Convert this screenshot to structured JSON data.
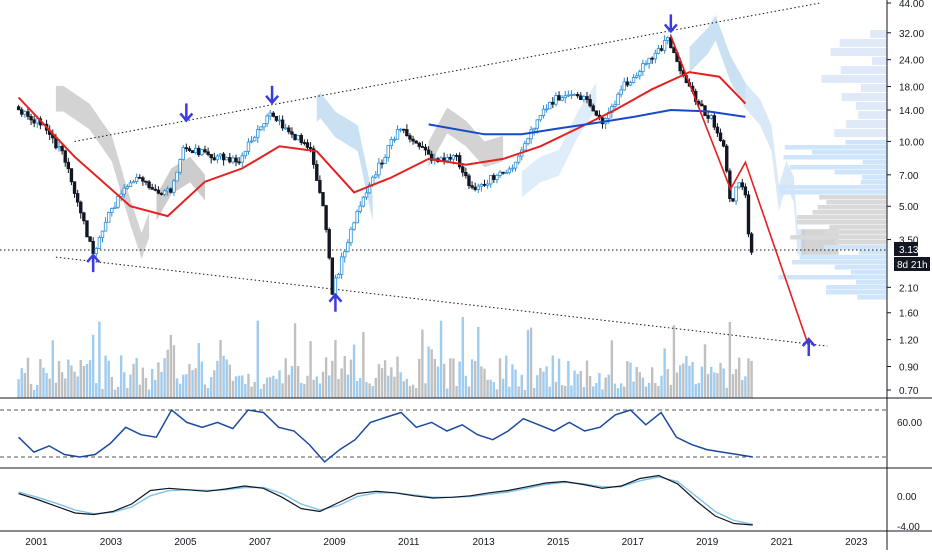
{
  "chart_data": {
    "type": "candlestick",
    "time_axis": {
      "labels": [
        "2001",
        "2003",
        "2005",
        "2007",
        "2009",
        "2011",
        "2013",
        "2015",
        "2017",
        "2019",
        "2021",
        "2023"
      ]
    },
    "price_axis": {
      "scale": "log",
      "ticks": [
        "44.00",
        "32.00",
        "24.00",
        "18.00",
        "14.00",
        "10.00",
        "7.00",
        "5.00",
        "3.50",
        "2.10",
        "1.60",
        "1.20",
        "0.90",
        "0.70"
      ],
      "last_price": "3.13",
      "countdown": "8d 21h"
    },
    "ohlc_anchors": [
      {
        "t": 2000.5,
        "v": 14.5
      },
      {
        "t": 2001.2,
        "v": 12.0
      },
      {
        "t": 2001.8,
        "v": 8.5
      },
      {
        "t": 2002.3,
        "v": 4.3
      },
      {
        "t": 2002.6,
        "v": 3.0
      },
      {
        "t": 2002.9,
        "v": 4.2
      },
      {
        "t": 2003.4,
        "v": 6.0
      },
      {
        "t": 2003.9,
        "v": 6.8
      },
      {
        "t": 2004.3,
        "v": 5.6
      },
      {
        "t": 2004.7,
        "v": 6.0
      },
      {
        "t": 2005.0,
        "v": 9.5
      },
      {
        "t": 2005.3,
        "v": 9.0
      },
      {
        "t": 2005.9,
        "v": 8.5
      },
      {
        "t": 2006.5,
        "v": 8.0
      },
      {
        "t": 2007.0,
        "v": 11.5
      },
      {
        "t": 2007.4,
        "v": 13.5
      },
      {
        "t": 2007.8,
        "v": 11.0
      },
      {
        "t": 2008.4,
        "v": 9.5
      },
      {
        "t": 2008.8,
        "v": 4.5
      },
      {
        "t": 2009.0,
        "v": 2.0
      },
      {
        "t": 2009.3,
        "v": 3.0
      },
      {
        "t": 2009.8,
        "v": 5.5
      },
      {
        "t": 2010.3,
        "v": 8.0
      },
      {
        "t": 2010.8,
        "v": 11.5
      },
      {
        "t": 2011.3,
        "v": 10.0
      },
      {
        "t": 2011.8,
        "v": 8.0
      },
      {
        "t": 2012.3,
        "v": 8.5
      },
      {
        "t": 2012.8,
        "v": 5.8
      },
      {
        "t": 2013.3,
        "v": 6.8
      },
      {
        "t": 2013.8,
        "v": 7.3
      },
      {
        "t": 2014.3,
        "v": 11.0
      },
      {
        "t": 2014.8,
        "v": 15.0
      },
      {
        "t": 2015.3,
        "v": 17.0
      },
      {
        "t": 2015.8,
        "v": 15.5
      },
      {
        "t": 2016.3,
        "v": 12.0
      },
      {
        "t": 2016.8,
        "v": 18.0
      },
      {
        "t": 2017.3,
        "v": 22.0
      },
      {
        "t": 2017.8,
        "v": 27.0
      },
      {
        "t": 2018.0,
        "v": 31.0
      },
      {
        "t": 2018.4,
        "v": 20.0
      },
      {
        "t": 2018.8,
        "v": 15.0
      },
      {
        "t": 2019.2,
        "v": 12.5
      },
      {
        "t": 2019.5,
        "v": 9.5
      },
      {
        "t": 2019.7,
        "v": 5.0
      },
      {
        "t": 2019.9,
        "v": 6.5
      },
      {
        "t": 2020.1,
        "v": 5.5
      },
      {
        "t": 2020.2,
        "v": 3.13
      }
    ],
    "moving_averages": [
      {
        "name": "",
        "color": "#e52020",
        "points": [
          {
            "t": 2000.5,
            "v": 16.0
          },
          {
            "t": 2002.0,
            "v": 8.5
          },
          {
            "t": 2003.5,
            "v": 5.0
          },
          {
            "t": 2004.5,
            "v": 4.5
          },
          {
            "t": 2005.5,
            "v": 6.5
          },
          {
            "t": 2006.5,
            "v": 7.5
          },
          {
            "t": 2007.5,
            "v": 9.5
          },
          {
            "t": 2008.5,
            "v": 9.0
          },
          {
            "t": 2009.5,
            "v": 5.8
          },
          {
            "t": 2010.5,
            "v": 6.8
          },
          {
            "t": 2011.5,
            "v": 8.3
          },
          {
            "t": 2012.5,
            "v": 7.8
          },
          {
            "t": 2013.5,
            "v": 8.3
          },
          {
            "t": 2014.5,
            "v": 9.5
          },
          {
            "t": 2015.5,
            "v": 11.5
          },
          {
            "t": 2016.5,
            "v": 14.0
          },
          {
            "t": 2017.5,
            "v": 17.5
          },
          {
            "t": 2018.5,
            "v": 21.0
          },
          {
            "t": 2019.3,
            "v": 20.0
          },
          {
            "t": 2020.0,
            "v": 15.0
          }
        ]
      },
      {
        "name": "",
        "color": "#1848cc",
        "points": [
          {
            "t": 2011.5,
            "v": 12.0
          },
          {
            "t": 2013.0,
            "v": 10.8
          },
          {
            "t": 2014.0,
            "v": 10.8
          },
          {
            "t": 2015.0,
            "v": 11.5
          },
          {
            "t": 2016.0,
            "v": 12.2
          },
          {
            "t": 2017.0,
            "v": 13.0
          },
          {
            "t": 2018.0,
            "v": 14.0
          },
          {
            "t": 2019.0,
            "v": 13.8
          },
          {
            "t": 2020.0,
            "v": 13.0
          }
        ]
      }
    ],
    "trendlines": [
      {
        "style": "dotted",
        "from": {
          "t": 2002.0,
          "v": 10.0
        },
        "to": {
          "t": 2022.0,
          "v": 44.0
        }
      },
      {
        "style": "dotted",
        "from": {
          "t": 2001.5,
          "v": 2.9
        },
        "to": {
          "t": 2022.2,
          "v": 1.12
        }
      },
      {
        "style": "dotted",
        "from": {
          "t": 2000.0,
          "v": 3.13
        },
        "to": {
          "t": 2023.8,
          "v": 3.13
        }
      }
    ],
    "projection": {
      "color": "#e52020",
      "points": [
        {
          "t": 2018.0,
          "v": 31.0
        },
        {
          "t": 2019.6,
          "v": 6.0
        },
        {
          "t": 2020.0,
          "v": 8.0
        },
        {
          "t": 2021.7,
          "v": 1.12
        }
      ]
    },
    "arrows": [
      {
        "dir": "down",
        "t": 2018.0,
        "v": 35.0
      },
      {
        "dir": "down",
        "t": 2005.0,
        "v": 13.5
      },
      {
        "dir": "down",
        "t": 2007.3,
        "v": 16.3
      },
      {
        "dir": "up",
        "t": 2002.5,
        "v": 2.75
      },
      {
        "dir": "up",
        "t": 2009.0,
        "v": 1.8
      },
      {
        "dir": "up",
        "t": 2021.7,
        "v": 1.12
      }
    ],
    "rsi": {
      "label": "60.00",
      "values": [
        50,
        38,
        43,
        36,
        34,
        36,
        45,
        58,
        52,
        50,
        72,
        62,
        58,
        62,
        57,
        72,
        70,
        58,
        55,
        44,
        30,
        40,
        48,
        62,
        66,
        70,
        58,
        62,
        55,
        60,
        52,
        48,
        55,
        65,
        60,
        55,
        62,
        55,
        58,
        68,
        72,
        60,
        70,
        50,
        44,
        40,
        38,
        36,
        34
      ]
    },
    "macd": {
      "label": "0.00",
      "label2": "-4.00",
      "macd_values": [
        0.2,
        -0.6,
        -1.5,
        -2.4,
        -2.6,
        -2.2,
        -1.2,
        0.6,
        0.9,
        0.7,
        0.5,
        0.8,
        1.2,
        0.9,
        -0.3,
        -1.8,
        -2.2,
        -1.0,
        0.2,
        0.5,
        0.3,
        -0.1,
        -0.4,
        -0.3,
        -0.1,
        0.3,
        0.6,
        1.1,
        1.6,
        1.8,
        1.4,
        0.9,
        1.2,
        2.2,
        2.6,
        1.5,
        -0.8,
        -2.8,
        -3.8,
        -4.0
      ],
      "signal_values": [
        0.4,
        -0.3,
        -1.1,
        -2.0,
        -2.5,
        -2.3,
        -1.6,
        -0.1,
        0.6,
        0.7,
        0.6,
        0.7,
        1.0,
        1.0,
        0.2,
        -1.2,
        -2.0,
        -1.4,
        -0.2,
        0.3,
        0.3,
        0.0,
        -0.3,
        -0.3,
        -0.2,
        0.1,
        0.4,
        0.9,
        1.4,
        1.7,
        1.5,
        1.1,
        1.1,
        1.9,
        2.4,
        1.8,
        -0.2,
        -2.2,
        -3.4,
        -3.9
      ],
      "start": 2000.5,
      "end": 2020.2
    }
  }
}
